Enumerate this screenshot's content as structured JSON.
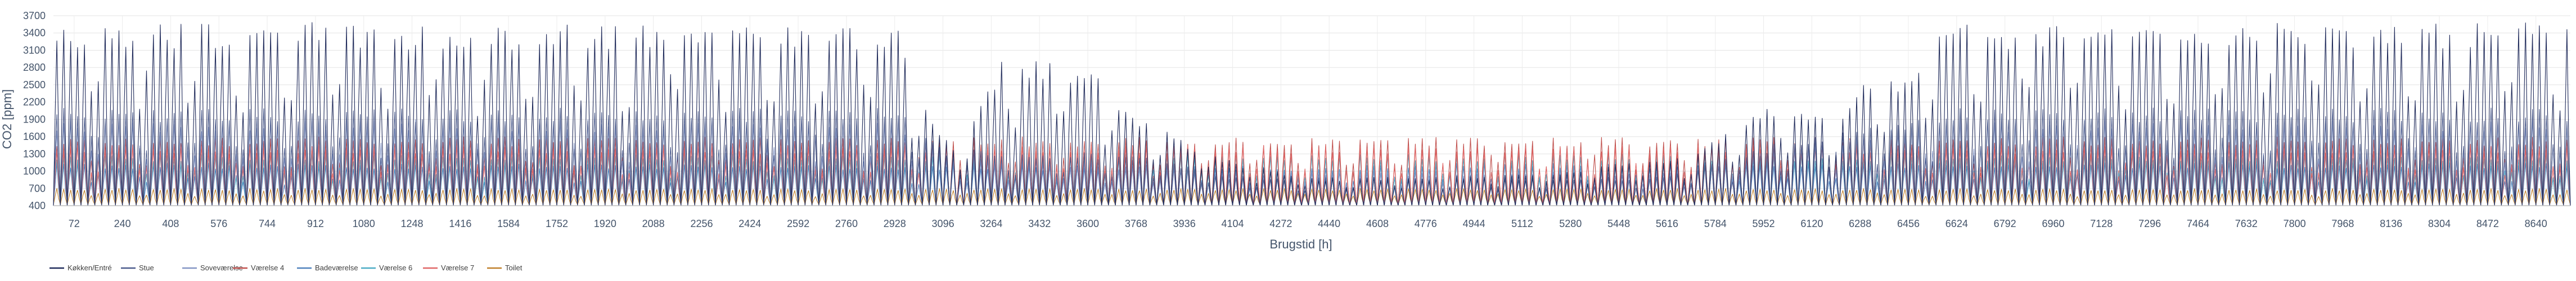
{
  "chart_data": {
    "type": "line",
    "title": "",
    "xlabel": "Brugstid [h]",
    "ylabel": "CO2 [ppm]",
    "ylim": [
      400,
      3700
    ],
    "xlim": [
      0,
      8760
    ],
    "y_ticks": [
      400,
      700,
      1000,
      1300,
      1600,
      1900,
      2200,
      2500,
      2800,
      3100,
      3400,
      3700
    ],
    "x_ticks": [
      72,
      240,
      408,
      576,
      744,
      912,
      1080,
      1248,
      1416,
      1584,
      1752,
      1920,
      2088,
      2256,
      2424,
      2592,
      2760,
      2928,
      3096,
      3264,
      3432,
      3600,
      3768,
      3936,
      4104,
      4272,
      4440,
      4608,
      4776,
      4944,
      5112,
      5280,
      5448,
      5616,
      5784,
      5952,
      6120,
      6288,
      6456,
      6624,
      6792,
      6960,
      7128,
      7296,
      7464,
      7632,
      7800,
      7968,
      8136,
      8304,
      8472,
      8640
    ],
    "grid": true,
    "legend_position": "bottom-left",
    "series": [
      {
        "name": "Køkken/Entré",
        "color": "#1f2a5a",
        "base": 400,
        "profile": [
          [
            0,
            3600
          ],
          [
            2950,
            3550
          ],
          [
            3000,
            2400
          ],
          [
            3150,
            1300
          ],
          [
            3300,
            3000
          ],
          [
            3600,
            2800
          ],
          [
            3800,
            1900
          ],
          [
            4100,
            1200
          ],
          [
            4400,
            900
          ],
          [
            4800,
            900
          ],
          [
            5200,
            1000
          ],
          [
            5700,
            1300
          ],
          [
            5950,
            2200
          ],
          [
            6200,
            1900
          ],
          [
            6300,
            2600
          ],
          [
            6450,
            2600
          ],
          [
            6550,
            3550
          ],
          [
            8760,
            3600
          ]
        ]
      },
      {
        "name": "Stue",
        "color": "#4a5a8c",
        "base": 400,
        "profile": [
          [
            0,
            2100
          ],
          [
            2950,
            2100
          ],
          [
            3100,
            1400
          ],
          [
            3800,
            1300
          ],
          [
            4100,
            900
          ],
          [
            5600,
            900
          ],
          [
            6000,
            1500
          ],
          [
            6500,
            1900
          ],
          [
            6600,
            2100
          ],
          [
            8760,
            2100
          ]
        ]
      },
      {
        "name": "Soveværelse",
        "color": "#8294c4",
        "base": 400,
        "profile": [
          [
            0,
            1900
          ],
          [
            2950,
            1900
          ],
          [
            3100,
            1300
          ],
          [
            4100,
            1000
          ],
          [
            5600,
            1000
          ],
          [
            6000,
            1400
          ],
          [
            6600,
            1900
          ],
          [
            8760,
            1900
          ]
        ]
      },
      {
        "name": "Værelse 4",
        "color": "#c0504d",
        "base": 420,
        "profile": [
          [
            0,
            1600
          ],
          [
            8760,
            1600
          ]
        ]
      },
      {
        "name": "Badeværelse",
        "color": "#4f81bd",
        "base": 420,
        "profile": [
          [
            0,
            1150
          ],
          [
            4400,
            1100
          ],
          [
            5000,
            1150
          ],
          [
            8760,
            1150
          ]
        ]
      },
      {
        "name": "Værelse 6",
        "color": "#4bacc6",
        "base": 420,
        "profile": [
          [
            0,
            1300
          ],
          [
            8760,
            1300
          ]
        ]
      },
      {
        "name": "Værelse 7",
        "color": "#e06666",
        "base": 420,
        "profile": [
          [
            0,
            1450
          ],
          [
            8760,
            1450
          ]
        ]
      },
      {
        "name": "Toilet",
        "color": "#c0802a",
        "base": 420,
        "profile": [
          [
            0,
            700
          ],
          [
            8760,
            700
          ]
        ]
      }
    ]
  }
}
